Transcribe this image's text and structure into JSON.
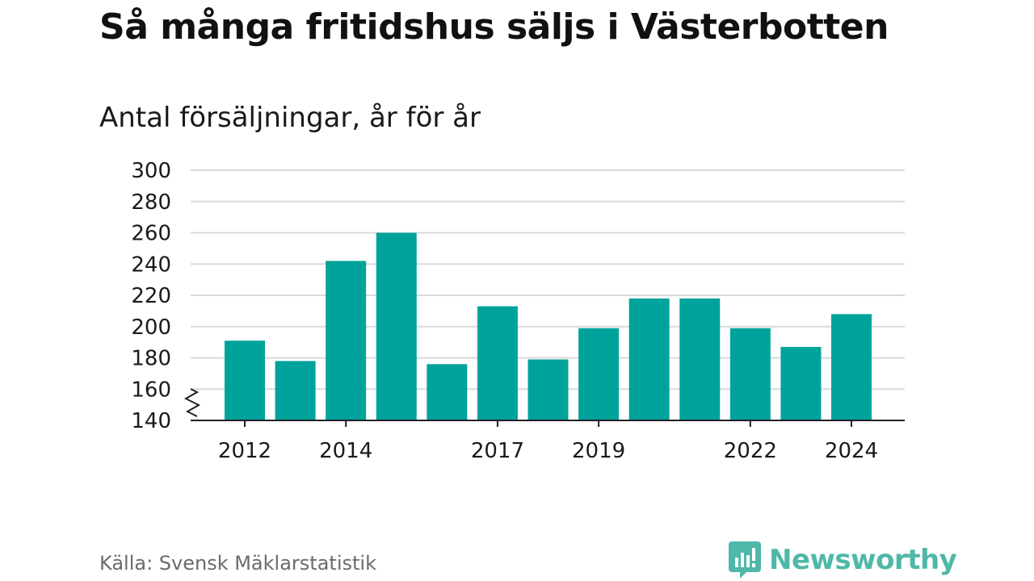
{
  "title": "Så många fritidshus säljs i Västerbotten",
  "subtitle": "Antal försäljningar, år för år",
  "source": "Källa: Svensk Mäklarstatistik",
  "logo": {
    "text": "Newsworthy",
    "icon": "newsworthy-logo-icon"
  },
  "colors": {
    "bar": "#00a39b",
    "grid": "#d9d9d9",
    "axis": "#222222",
    "logo": "#4fb8a8"
  },
  "chart_data": {
    "type": "bar",
    "title": "Så många fritidshus säljs i Västerbotten",
    "subtitle": "Antal försäljningar, år för år",
    "xlabel": "",
    "ylabel": "",
    "ylim": [
      140,
      300
    ],
    "y_broken_axis": true,
    "yticks": [
      140,
      160,
      180,
      200,
      220,
      240,
      260,
      280,
      300
    ],
    "categories": [
      "2012",
      "2013",
      "2014",
      "2015",
      "2016",
      "2017",
      "2018",
      "2019",
      "2020",
      "2021",
      "2022",
      "2023",
      "2024"
    ],
    "xtick_labels_shown": [
      "2012",
      "2014",
      "2017",
      "2019",
      "2022",
      "2024"
    ],
    "values": [
      191,
      178,
      242,
      260,
      176,
      213,
      179,
      199,
      218,
      218,
      199,
      187,
      208
    ],
    "grid": true,
    "legend": "none"
  }
}
